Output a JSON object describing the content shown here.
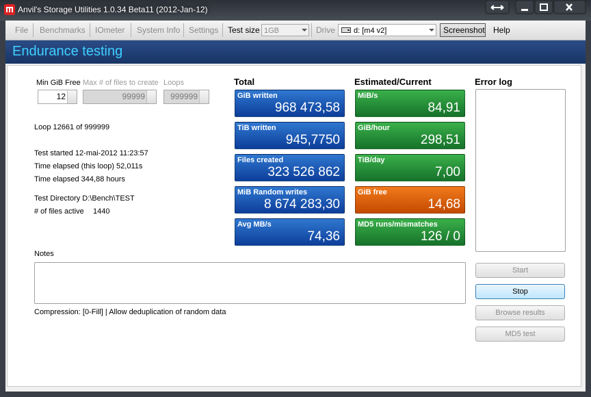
{
  "window": {
    "title": "Anvil's Storage Utilities 1.0.34 Beta11 (2012-Jan-12)"
  },
  "toolbar": {
    "menu": [
      "File",
      "Benchmarks",
      "IOmeter",
      "System Info",
      "Settings"
    ],
    "test_size_label": "Test size",
    "test_size": "1GB",
    "drive_label": "Drive",
    "drive": "d: [m4 v2]",
    "screenshot": "Screenshot",
    "help": "Help"
  },
  "header": {
    "title": "Endurance testing"
  },
  "settings": {
    "min_free_label": "Min GiB Free",
    "min_free": "12",
    "max_files_label": "Max # of files to create",
    "max_files": "99999",
    "loops_label": "Loops",
    "loops": "999999"
  },
  "status": {
    "loop": "Loop 12661 of 999999",
    "started": "Test started 12-mai-2012 11:23:57",
    "elapsed_loop": "Time elapsed (this loop) 52,011s",
    "elapsed": "Time elapsed 344,88 hours",
    "directory": "Test Directory D:\\Bench\\TEST",
    "files_active_label": "# of files active",
    "files_active": "1440"
  },
  "total": {
    "title": "Total",
    "tiles": [
      {
        "label": "GiB written",
        "value": "968 473,58"
      },
      {
        "label": "TiB written",
        "value": "945,7750"
      },
      {
        "label": "Files created",
        "value": "323 526 862"
      },
      {
        "label": "MiB Random writes",
        "value": "8 674 283,30"
      },
      {
        "label": "Avg MB/s",
        "value": "74,36"
      }
    ]
  },
  "estimated": {
    "title": "Estimated/Current",
    "tiles": [
      {
        "label": "MiB/s",
        "value": "84,91"
      },
      {
        "label": "GiB/hour",
        "value": "298,51"
      },
      {
        "label": "TiB/day",
        "value": "7,00"
      },
      {
        "label": "GiB free",
        "value": "14,68"
      },
      {
        "label": "MD5 runs/mismatches",
        "value": "126 / 0"
      }
    ]
  },
  "error_log": {
    "title": "Error log"
  },
  "notes": {
    "title": "Notes",
    "compression": "Compression: [0-Fill] | Allow deduplication of random data"
  },
  "buttons": [
    "Start",
    "Stop",
    "Browse results",
    "MD5 test"
  ]
}
